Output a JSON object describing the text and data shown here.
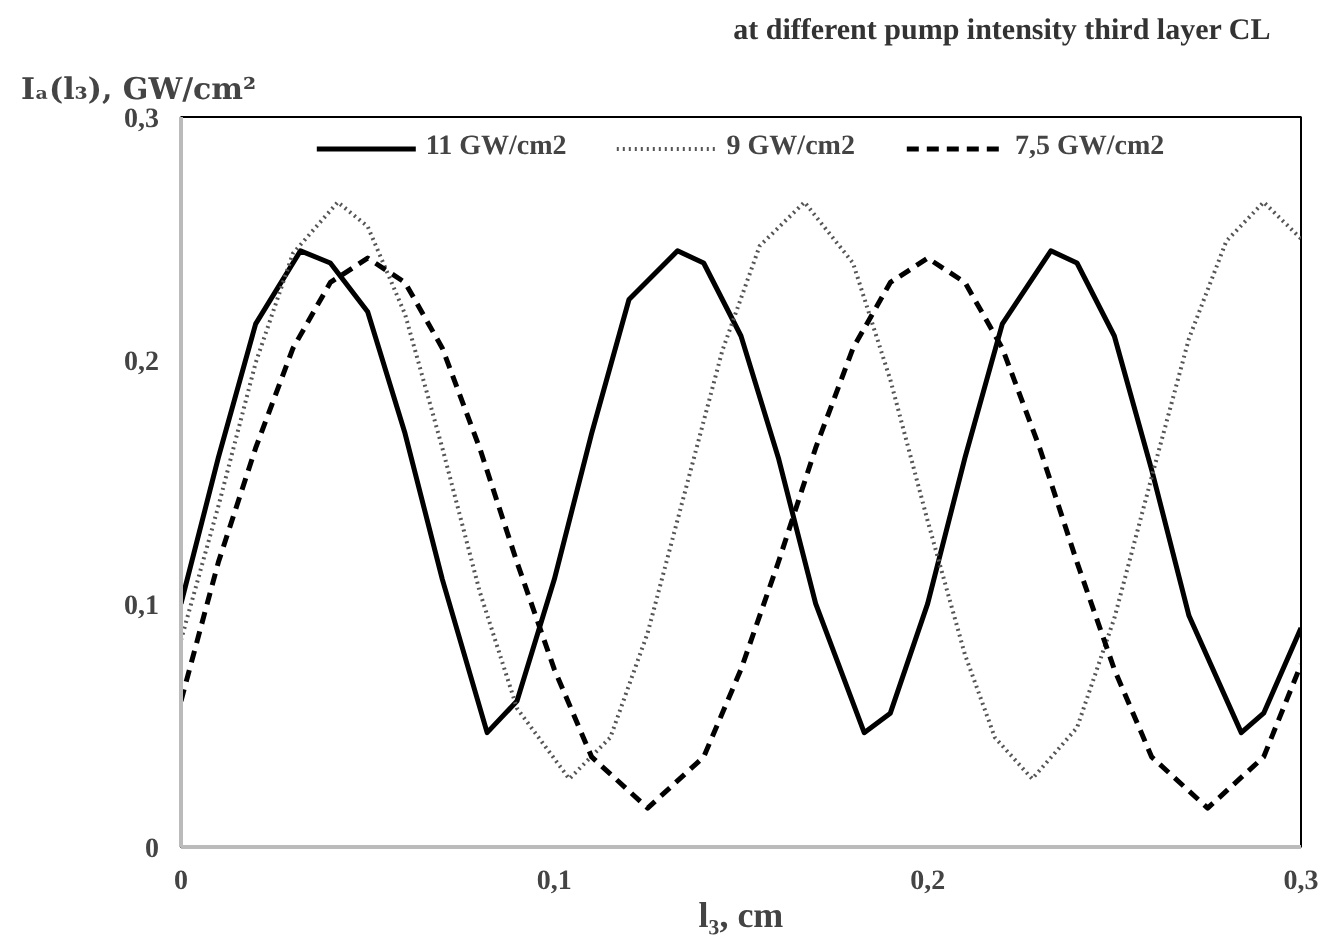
{
  "chart_data": {
    "type": "line",
    "title": "at different pump intensity  third layer    CL",
    "xlabel": "l₃, cm",
    "ylabel": "Iₐ(l₃), GW/cm²",
    "xlim": [
      0,
      0.3
    ],
    "ylim": [
      0,
      0.3
    ],
    "xticks": [
      0,
      {
        "value": 0.1,
        "label": "0,1"
      },
      {
        "value": 0.2,
        "label": "0,2"
      },
      {
        "value": 0.3,
        "label": "0,3"
      }
    ],
    "yticks": [
      0,
      {
        "value": 0.1,
        "label": "0,1"
      },
      {
        "value": 0.2,
        "label": "0,2"
      },
      {
        "value": 0.3,
        "label": "0,3"
      }
    ],
    "grid": false,
    "legend": "top",
    "marker": "none",
    "series": [
      {
        "name": "11 GW/cm2",
        "color": "#000000",
        "line_style": "solid",
        "x": [
          0,
          0.01,
          0.02,
          0.032,
          0.04,
          0.05,
          0.06,
          0.07,
          0.082,
          0.09,
          0.1,
          0.11,
          0.12,
          0.133,
          0.14,
          0.15,
          0.16,
          0.17,
          0.183,
          0.19,
          0.2,
          0.21,
          0.22,
          0.233,
          0.24,
          0.25,
          0.26,
          0.27,
          0.284,
          0.29,
          0.3
        ],
        "values": [
          0.1,
          0.16,
          0.215,
          0.245,
          0.24,
          0.22,
          0.17,
          0.11,
          0.047,
          0.06,
          0.11,
          0.17,
          0.225,
          0.245,
          0.24,
          0.21,
          0.16,
          0.1,
          0.047,
          0.055,
          0.1,
          0.16,
          0.215,
          0.245,
          0.24,
          0.21,
          0.155,
          0.095,
          0.047,
          0.055,
          0.09
        ]
      },
      {
        "name": "9 GW/cm2",
        "color": "#555555",
        "line_style": "dotted",
        "x": [
          0,
          0.01,
          0.02,
          0.03,
          0.042,
          0.05,
          0.06,
          0.07,
          0.08,
          0.09,
          0.104,
          0.115,
          0.125,
          0.135,
          0.145,
          0.155,
          0.167,
          0.18,
          0.19,
          0.2,
          0.21,
          0.218,
          0.228,
          0.24,
          0.25,
          0.26,
          0.27,
          0.28,
          0.29,
          0.3
        ],
        "values": [
          0.085,
          0.14,
          0.199,
          0.244,
          0.265,
          0.255,
          0.219,
          0.164,
          0.105,
          0.057,
          0.028,
          0.045,
          0.088,
          0.146,
          0.204,
          0.247,
          0.265,
          0.24,
          0.192,
          0.134,
          0.079,
          0.045,
          0.028,
          0.049,
          0.094,
          0.152,
          0.209,
          0.249,
          0.265,
          0.25
        ]
      },
      {
        "name": "7,5 GW/cm2",
        "color": "#000000",
        "line_style": "dashed",
        "x": [
          0,
          0.01,
          0.02,
          0.03,
          0.04,
          0.05,
          0.06,
          0.07,
          0.08,
          0.09,
          0.1,
          0.11,
          0.125,
          0.14,
          0.15,
          0.16,
          0.17,
          0.18,
          0.19,
          0.2,
          0.21,
          0.22,
          0.23,
          0.24,
          0.25,
          0.26,
          0.275,
          0.29,
          0.3
        ],
        "values": [
          0.06,
          0.117,
          0.164,
          0.205,
          0.232,
          0.242,
          0.232,
          0.205,
          0.164,
          0.117,
          0.073,
          0.037,
          0.016,
          0.037,
          0.073,
          0.117,
          0.164,
          0.205,
          0.232,
          0.242,
          0.232,
          0.205,
          0.164,
          0.117,
          0.073,
          0.037,
          0.016,
          0.037,
          0.075
        ]
      }
    ]
  }
}
